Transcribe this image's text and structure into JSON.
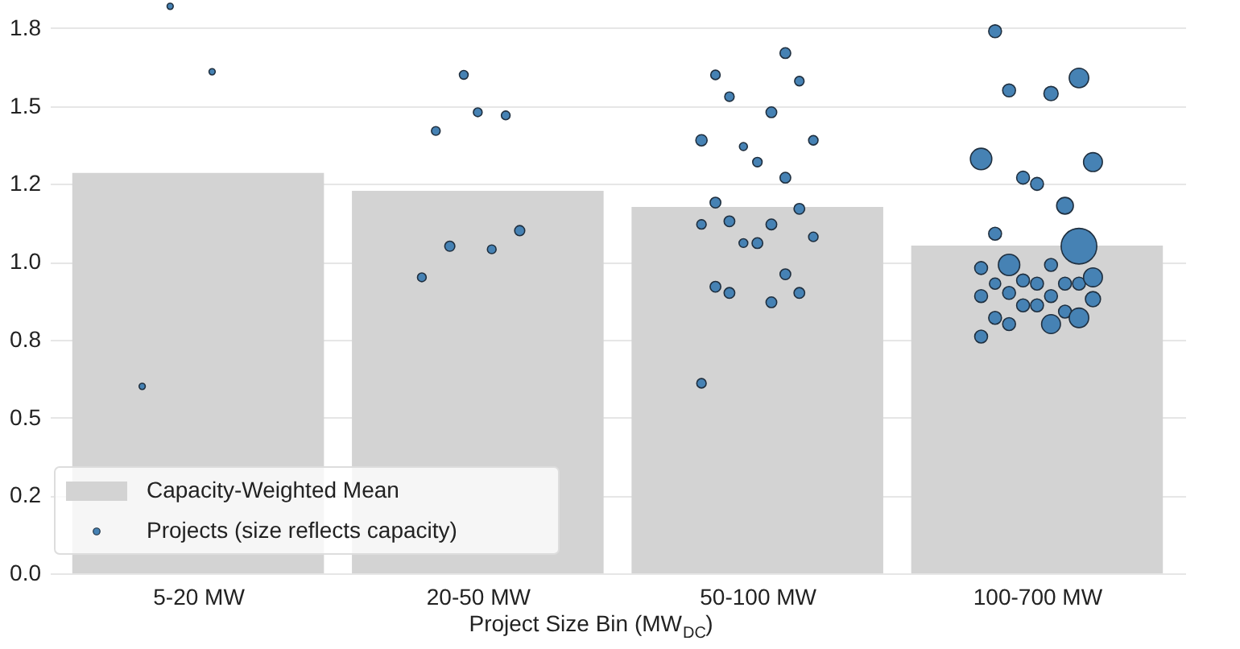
{
  "chart_data": {
    "type": "bar",
    "xlabel": "Project Size Bin (MW$_{DC}$)",
    "categories": [
      "5-20 MW",
      "20-50 MW",
      "50-100 MW",
      "100-700 MW"
    ],
    "ylim": [
      0,
      1.83
    ],
    "yticks": [
      {
        "value": 0,
        "label": "0.0"
      },
      {
        "value": 0.25,
        "label": "0.2"
      },
      0.5,
      {
        "value": 0.75,
        "label": "0.8"
      },
      {
        "value": 1,
        "label": "1.0"
      },
      {
        "value": 1.25,
        "label": "1.2"
      },
      1.5,
      {
        "value": 1.75,
        "label": "1.8"
      }
    ],
    "grid": "y",
    "legend": "bottom left",
    "series": [
      {
        "name": "Capacity-Weighted Mean",
        "color": "#d3d3d3",
        "values": [
          1.285,
          1.228,
          1.176,
          1.052
        ]
      },
      {
        "name": "Projects (size reflects capacity)",
        "type": "bubble",
        "color": "#4682b4",
        "marker": "circle",
        "x": [
          "5-20 MW",
          "5-20 MW",
          "5-20 MW",
          "20-50 MW",
          "20-50 MW",
          "20-50 MW",
          "20-50 MW",
          "20-50 MW",
          "20-50 MW",
          "20-50 MW",
          "20-50 MW",
          "50-100 MW",
          "50-100 MW",
          "50-100 MW",
          "50-100 MW",
          "50-100 MW",
          "50-100 MW",
          "50-100 MW",
          "50-100 MW",
          "50-100 MW",
          "50-100 MW",
          "50-100 MW",
          "50-100 MW",
          "50-100 MW",
          "50-100 MW",
          "50-100 MW",
          "50-100 MW",
          "50-100 MW",
          "50-100 MW",
          "50-100 MW",
          "50-100 MW",
          "50-100 MW",
          "50-100 MW",
          "50-100 MW",
          "50-100 MW",
          "100-700 MW",
          "100-700 MW",
          "100-700 MW",
          "100-700 MW",
          "100-700 MW",
          "100-700 MW",
          "100-700 MW",
          "100-700 MW",
          "100-700 MW",
          "100-700 MW",
          "100-700 MW",
          "100-700 MW",
          "100-700 MW",
          "100-700 MW",
          "100-700 MW",
          "100-700 MW",
          "100-700 MW",
          "100-700 MW",
          "100-700 MW",
          "100-700 MW",
          "100-700 MW",
          "100-700 MW",
          "100-700 MW",
          "100-700 MW",
          "100-700 MW",
          "100-700 MW",
          "100-700 MW",
          "100-700 MW",
          "100-700 MW",
          "100-700 MW",
          "100-700 MW",
          "100-700 MW"
        ],
        "values": [
          1.82,
          1.61,
          0.6,
          1.6,
          1.47,
          1.48,
          1.42,
          1.1,
          1.05,
          1.04,
          0.95,
          1.67,
          1.6,
          1.58,
          1.53,
          1.48,
          1.39,
          1.39,
          1.37,
          1.32,
          1.27,
          1.19,
          1.17,
          1.12,
          1.13,
          1.12,
          1.08,
          1.06,
          1.06,
          0.96,
          0.9,
          0.9,
          0.92,
          0.87,
          0.61,
          1.74,
          1.59,
          1.55,
          1.54,
          1.33,
          1.32,
          1.27,
          1.25,
          1.18,
          1.05,
          1.09,
          0.98,
          0.99,
          0.99,
          0.93,
          0.93,
          0.94,
          0.93,
          0.93,
          0.95,
          0.89,
          0.9,
          0.88,
          0.89,
          0.86,
          0.86,
          0.84,
          0.82,
          0.82,
          0.8,
          0.8,
          0.76
        ],
        "sizes": [
          0.03,
          0.03,
          0.03,
          0.06,
          0.06,
          0.06,
          0.06,
          0.08,
          0.08,
          0.06,
          0.06,
          0.09,
          0.07,
          0.07,
          0.07,
          0.09,
          0.07,
          0.1,
          0.05,
          0.07,
          0.09,
          0.09,
          0.09,
          0.07,
          0.09,
          0.09,
          0.07,
          0.09,
          0.06,
          0.09,
          0.09,
          0.09,
          0.09,
          0.09,
          0.07,
          0.13,
          0.3,
          0.13,
          0.16,
          0.36,
          0.28,
          0.13,
          0.13,
          0.22,
          1.0,
          0.13,
          0.13,
          0.13,
          0.36,
          0.13,
          0.1,
          0.13,
          0.13,
          0.13,
          0.28,
          0.13,
          0.13,
          0.18,
          0.13,
          0.13,
          0.13,
          0.13,
          0.3,
          0.13,
          0.28,
          0.13,
          0.13
        ]
      }
    ]
  }
}
